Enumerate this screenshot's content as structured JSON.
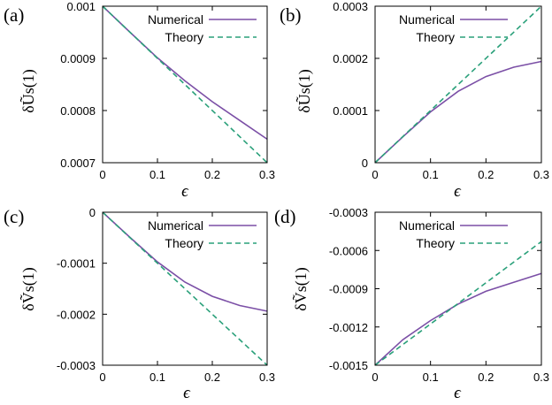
{
  "colors": {
    "numerical": "#7b4fa6",
    "theory": "#2aa07a"
  },
  "chart_data": [
    {
      "type": "line",
      "panel_label": "(a)",
      "xlabel": "ϵ",
      "ylabel": "δŨs(1)",
      "xlim": [
        0,
        0.3
      ],
      "ylim": [
        0.0007,
        0.001
      ],
      "xticks": [
        0,
        0.1,
        0.2,
        0.3
      ],
      "xtick_labels": [
        "0",
        "0.1",
        "0.2",
        "0.3"
      ],
      "yticks": [
        0.0007,
        0.0008,
        0.0009,
        0.001
      ],
      "ytick_labels": [
        "0.0007",
        "0.0008",
        "0.0009",
        "0.001"
      ],
      "legend": "top-right",
      "series": [
        {
          "name": "Numerical",
          "x": [
            0,
            0.05,
            0.1,
            0.15,
            0.2,
            0.25,
            0.3
          ],
          "y": [
            0.001,
            0.00095,
            0.000901,
            0.000857,
            0.000817,
            0.000781,
            0.000745
          ]
        },
        {
          "name": "Theory",
          "x": [
            0,
            0.3
          ],
          "y": [
            0.001,
            0.0007
          ]
        }
      ]
    },
    {
      "type": "line",
      "panel_label": "(b)",
      "xlabel": "ϵ",
      "ylabel": "δŨs(1)",
      "xlim": [
        0,
        0.3
      ],
      "ylim": [
        0,
        0.0003
      ],
      "xticks": [
        0,
        0.1,
        0.2,
        0.3
      ],
      "xtick_labels": [
        "0",
        "0.1",
        "0.2",
        "0.3"
      ],
      "yticks": [
        0,
        0.0001,
        0.0002,
        0.0003
      ],
      "ytick_labels": [
        "0",
        "0.0001",
        "0.0002",
        "0.0003"
      ],
      "legend": "top-left",
      "series": [
        {
          "name": "Numerical",
          "x": [
            0,
            0.05,
            0.1,
            0.15,
            0.2,
            0.25,
            0.3
          ],
          "y": [
            0,
            4.95e-05,
            9.75e-05,
            0.000137,
            0.000165,
            0.000183,
            0.000194
          ]
        },
        {
          "name": "Theory",
          "x": [
            0,
            0.3
          ],
          "y": [
            0,
            0.0003
          ]
        }
      ]
    },
    {
      "type": "line",
      "panel_label": "(c)",
      "xlabel": "ϵ",
      "ylabel": "δṼs(1)",
      "xlim": [
        0,
        0.3
      ],
      "ylim": [
        -0.0003,
        0
      ],
      "xticks": [
        0,
        0.1,
        0.2,
        0.3
      ],
      "xtick_labels": [
        "0",
        "0.1",
        "0.2",
        "0.3"
      ],
      "yticks": [
        -0.0003,
        -0.0002,
        -0.0001,
        0
      ],
      "ytick_labels": [
        "-0.0003",
        "-0.0002",
        "-0.0001",
        "0"
      ],
      "legend": "top-right",
      "series": [
        {
          "name": "Numerical",
          "x": [
            0,
            0.05,
            0.1,
            0.15,
            0.2,
            0.25,
            0.3
          ],
          "y": [
            0,
            -4.95e-05,
            -9.75e-05,
            -0.000137,
            -0.000165,
            -0.000183,
            -0.000194
          ]
        },
        {
          "name": "Theory",
          "x": [
            0,
            0.3
          ],
          "y": [
            0,
            -0.0003
          ]
        }
      ]
    },
    {
      "type": "line",
      "panel_label": "(d)",
      "xlabel": "ϵ",
      "ylabel": "δṼs(1)",
      "xlim": [
        0,
        0.3
      ],
      "ylim": [
        -0.0015,
        -0.0003
      ],
      "xticks": [
        0,
        0.1,
        0.2,
        0.3
      ],
      "xtick_labels": [
        "0",
        "0.1",
        "0.2",
        "0.3"
      ],
      "yticks": [
        -0.0015,
        -0.0012,
        -0.0009,
        -0.0006,
        -0.0003
      ],
      "ytick_labels": [
        "-0.0015",
        "-0.0012",
        "-0.0009",
        "-0.0006",
        "-0.0003"
      ],
      "legend": "top-left",
      "series": [
        {
          "name": "Numerical",
          "x": [
            0,
            0.05,
            0.1,
            0.15,
            0.2,
            0.25,
            0.3
          ],
          "y": [
            -0.0015,
            -0.0013,
            -0.00115,
            -0.00102,
            -0.00092,
            -0.00085,
            -0.00078
          ]
        },
        {
          "name": "Theory",
          "x": [
            0,
            0.3
          ],
          "y": [
            -0.0015,
            -0.00053
          ]
        }
      ]
    }
  ]
}
